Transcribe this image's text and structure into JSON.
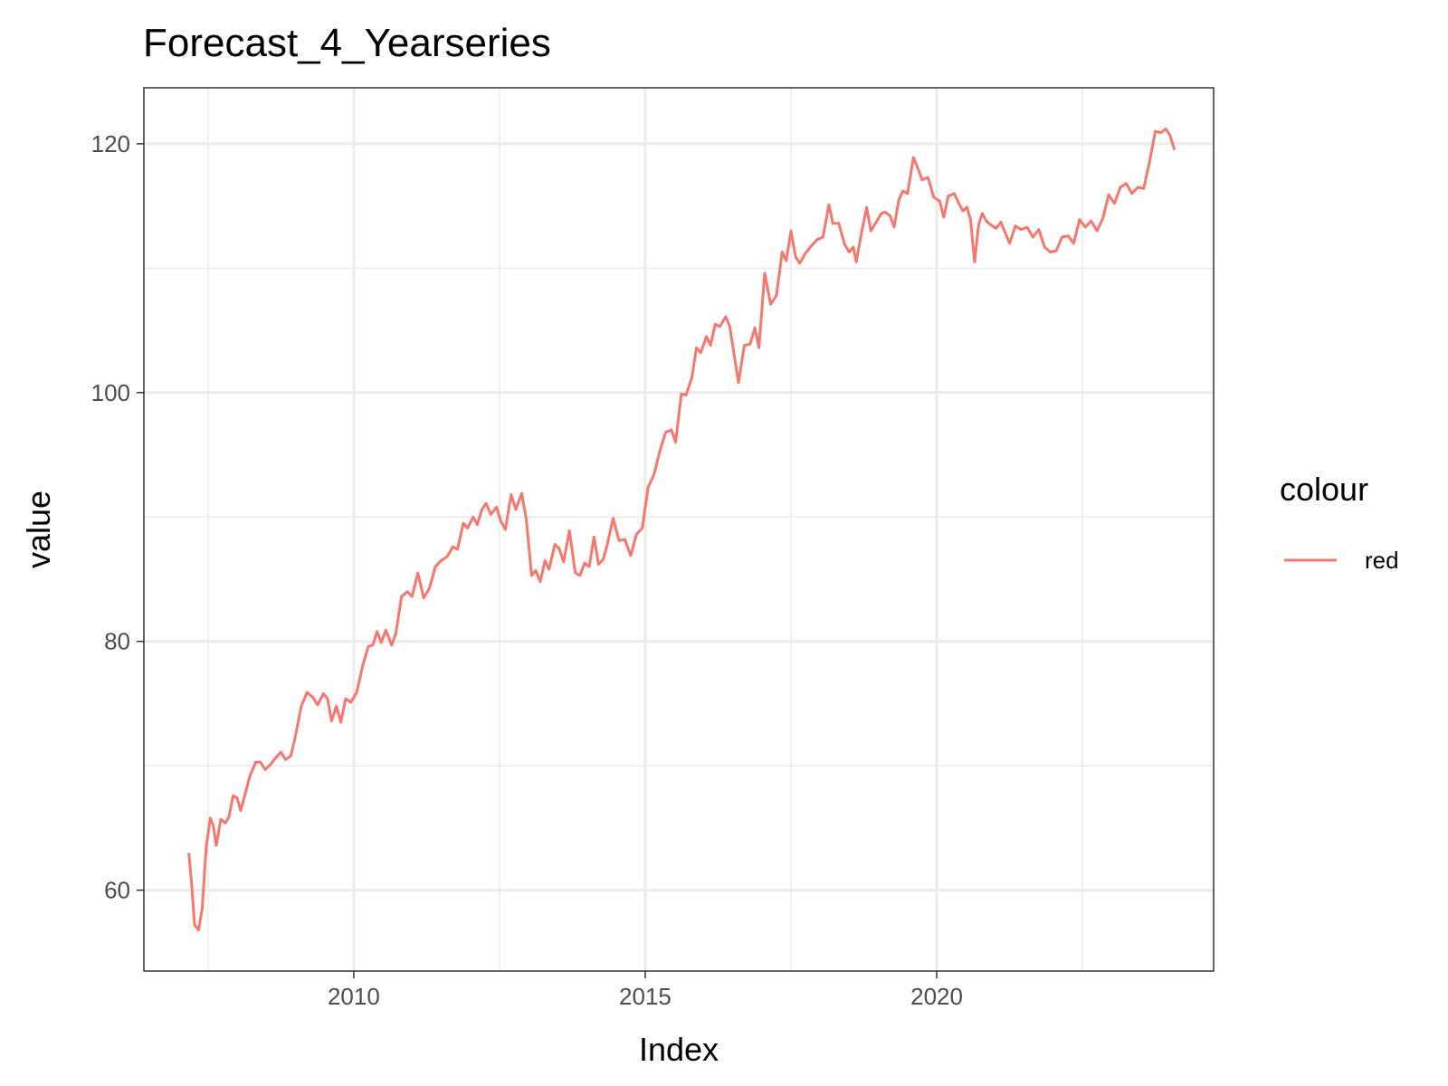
{
  "chart_data": {
    "type": "line",
    "title": "Forecast_4_Yearseries",
    "xlabel": "Index",
    "ylabel": "value",
    "xlim": [
      2006.4,
      2024.75
    ],
    "ylim": [
      53.5,
      124.5
    ],
    "x_ticks": [
      2010,
      2015,
      2020
    ],
    "x_minor_ticks": [
      2007.5,
      2012.5,
      2017.5,
      2022.5
    ],
    "y_ticks": [
      60,
      80,
      100,
      120
    ],
    "y_minor_ticks": [
      70,
      90,
      110
    ],
    "grid": true,
    "legend": {
      "title": "colour",
      "position": "right",
      "entries": [
        {
          "label": "red",
          "color": "#F8766D"
        }
      ]
    },
    "series": [
      {
        "name": "red",
        "color": "#F8766D",
        "points": [
          [
            2007.17,
            63.0
          ],
          [
            2007.22,
            60.5
          ],
          [
            2007.27,
            57.2
          ],
          [
            2007.34,
            56.8
          ],
          [
            2007.4,
            58.5
          ],
          [
            2007.47,
            63.5
          ],
          [
            2007.54,
            65.8
          ],
          [
            2007.59,
            65.2
          ],
          [
            2007.64,
            63.6
          ],
          [
            2007.72,
            65.7
          ],
          [
            2007.8,
            65.4
          ],
          [
            2007.86,
            65.9
          ],
          [
            2007.93,
            67.6
          ],
          [
            2008.0,
            67.4
          ],
          [
            2008.06,
            66.4
          ],
          [
            2008.13,
            67.6
          ],
          [
            2008.22,
            69.2
          ],
          [
            2008.32,
            70.3
          ],
          [
            2008.4,
            70.3
          ],
          [
            2008.48,
            69.7
          ],
          [
            2008.57,
            70.1
          ],
          [
            2008.67,
            70.7
          ],
          [
            2008.75,
            71.1
          ],
          [
            2008.83,
            70.5
          ],
          [
            2008.92,
            70.8
          ],
          [
            2009.0,
            72.4
          ],
          [
            2009.1,
            74.8
          ],
          [
            2009.2,
            75.9
          ],
          [
            2009.3,
            75.5
          ],
          [
            2009.38,
            74.9
          ],
          [
            2009.48,
            75.8
          ],
          [
            2009.55,
            75.4
          ],
          [
            2009.62,
            73.6
          ],
          [
            2009.7,
            74.8
          ],
          [
            2009.78,
            73.5
          ],
          [
            2009.86,
            75.4
          ],
          [
            2009.95,
            75.1
          ],
          [
            2010.05,
            75.9
          ],
          [
            2010.15,
            78.0
          ],
          [
            2010.25,
            79.6
          ],
          [
            2010.33,
            79.7
          ],
          [
            2010.4,
            80.8
          ],
          [
            2010.47,
            79.9
          ],
          [
            2010.55,
            80.9
          ],
          [
            2010.65,
            79.7
          ],
          [
            2010.72,
            80.6
          ],
          [
            2010.82,
            83.6
          ],
          [
            2010.92,
            84.0
          ],
          [
            2011.0,
            83.6
          ],
          [
            2011.1,
            85.5
          ],
          [
            2011.2,
            83.5
          ],
          [
            2011.3,
            84.3
          ],
          [
            2011.4,
            86.0
          ],
          [
            2011.5,
            86.5
          ],
          [
            2011.6,
            86.8
          ],
          [
            2011.7,
            87.6
          ],
          [
            2011.78,
            87.4
          ],
          [
            2011.88,
            89.5
          ],
          [
            2011.95,
            89.1
          ],
          [
            2012.05,
            90.0
          ],
          [
            2012.12,
            89.4
          ],
          [
            2012.2,
            90.6
          ],
          [
            2012.27,
            91.1
          ],
          [
            2012.35,
            90.2
          ],
          [
            2012.45,
            90.8
          ],
          [
            2012.52,
            89.7
          ],
          [
            2012.6,
            89.0
          ],
          [
            2012.7,
            91.8
          ],
          [
            2012.78,
            90.6
          ],
          [
            2012.88,
            91.9
          ],
          [
            2012.96,
            89.8
          ],
          [
            2013.05,
            85.3
          ],
          [
            2013.12,
            85.7
          ],
          [
            2013.2,
            84.8
          ],
          [
            2013.28,
            86.5
          ],
          [
            2013.35,
            85.8
          ],
          [
            2013.45,
            87.8
          ],
          [
            2013.52,
            87.5
          ],
          [
            2013.6,
            86.4
          ],
          [
            2013.7,
            88.9
          ],
          [
            2013.8,
            85.5
          ],
          [
            2013.88,
            85.3
          ],
          [
            2013.96,
            86.3
          ],
          [
            2014.04,
            86.0
          ],
          [
            2014.12,
            88.4
          ],
          [
            2014.2,
            86.2
          ],
          [
            2014.28,
            86.6
          ],
          [
            2014.35,
            87.8
          ],
          [
            2014.45,
            89.9
          ],
          [
            2014.55,
            88.1
          ],
          [
            2014.65,
            88.2
          ],
          [
            2014.75,
            86.9
          ],
          [
            2014.85,
            88.6
          ],
          [
            2014.95,
            89.1
          ],
          [
            2015.05,
            92.4
          ],
          [
            2015.15,
            93.4
          ],
          [
            2015.25,
            95.3
          ],
          [
            2015.35,
            96.8
          ],
          [
            2015.45,
            97.0
          ],
          [
            2015.52,
            96.0
          ],
          [
            2015.62,
            99.9
          ],
          [
            2015.7,
            99.8
          ],
          [
            2015.8,
            101.2
          ],
          [
            2015.88,
            103.6
          ],
          [
            2015.95,
            103.2
          ],
          [
            2016.05,
            104.5
          ],
          [
            2016.12,
            103.8
          ],
          [
            2016.2,
            105.5
          ],
          [
            2016.28,
            105.3
          ],
          [
            2016.38,
            106.1
          ],
          [
            2016.45,
            105.3
          ],
          [
            2016.52,
            103.2
          ],
          [
            2016.6,
            100.8
          ],
          [
            2016.7,
            103.8
          ],
          [
            2016.8,
            103.9
          ],
          [
            2016.88,
            105.2
          ],
          [
            2016.95,
            103.6
          ],
          [
            2017.05,
            109.6
          ],
          [
            2017.15,
            107.1
          ],
          [
            2017.25,
            107.8
          ],
          [
            2017.35,
            111.3
          ],
          [
            2017.42,
            110.6
          ],
          [
            2017.5,
            113.0
          ],
          [
            2017.58,
            110.9
          ],
          [
            2017.65,
            110.4
          ],
          [
            2017.75,
            111.2
          ],
          [
            2017.85,
            111.8
          ],
          [
            2017.95,
            112.3
          ],
          [
            2018.05,
            112.5
          ],
          [
            2018.15,
            115.1
          ],
          [
            2018.22,
            113.6
          ],
          [
            2018.32,
            113.6
          ],
          [
            2018.42,
            111.9
          ],
          [
            2018.5,
            111.3
          ],
          [
            2018.57,
            111.7
          ],
          [
            2018.62,
            110.5
          ],
          [
            2018.72,
            113.1
          ],
          [
            2018.8,
            114.9
          ],
          [
            2018.87,
            113.0
          ],
          [
            2018.95,
            113.6
          ],
          [
            2019.05,
            114.4
          ],
          [
            2019.12,
            114.5
          ],
          [
            2019.2,
            114.2
          ],
          [
            2019.27,
            113.3
          ],
          [
            2019.35,
            115.5
          ],
          [
            2019.42,
            116.2
          ],
          [
            2019.5,
            116.0
          ],
          [
            2019.6,
            118.9
          ],
          [
            2019.68,
            118.0
          ],
          [
            2019.75,
            117.1
          ],
          [
            2019.85,
            117.3
          ],
          [
            2019.95,
            115.7
          ],
          [
            2020.05,
            115.4
          ],
          [
            2020.12,
            114.1
          ],
          [
            2020.2,
            115.8
          ],
          [
            2020.3,
            116.0
          ],
          [
            2020.38,
            115.2
          ],
          [
            2020.45,
            114.6
          ],
          [
            2020.52,
            114.9
          ],
          [
            2020.58,
            113.9
          ],
          [
            2020.65,
            110.5
          ],
          [
            2020.72,
            113.5
          ],
          [
            2020.78,
            114.4
          ],
          [
            2020.85,
            113.8
          ],
          [
            2020.92,
            113.5
          ],
          [
            2021.02,
            113.2
          ],
          [
            2021.1,
            113.7
          ],
          [
            2021.18,
            112.8
          ],
          [
            2021.25,
            112.0
          ],
          [
            2021.35,
            113.4
          ],
          [
            2021.45,
            113.1
          ],
          [
            2021.55,
            113.3
          ],
          [
            2021.65,
            112.5
          ],
          [
            2021.75,
            113.1
          ],
          [
            2021.85,
            111.7
          ],
          [
            2021.95,
            111.3
          ],
          [
            2022.05,
            111.4
          ],
          [
            2022.15,
            112.5
          ],
          [
            2022.25,
            112.6
          ],
          [
            2022.35,
            112.0
          ],
          [
            2022.45,
            113.9
          ],
          [
            2022.55,
            113.3
          ],
          [
            2022.65,
            113.8
          ],
          [
            2022.75,
            113.0
          ],
          [
            2022.85,
            114.0
          ],
          [
            2022.95,
            115.9
          ],
          [
            2023.05,
            115.2
          ],
          [
            2023.15,
            116.5
          ],
          [
            2023.25,
            116.8
          ],
          [
            2023.35,
            116.0
          ],
          [
            2023.45,
            116.5
          ],
          [
            2023.55,
            116.4
          ],
          [
            2023.65,
            118.5
          ],
          [
            2023.75,
            121.0
          ],
          [
            2023.85,
            120.9
          ],
          [
            2023.93,
            121.2
          ],
          [
            2024.0,
            120.7
          ],
          [
            2024.08,
            119.5
          ]
        ]
      }
    ]
  }
}
